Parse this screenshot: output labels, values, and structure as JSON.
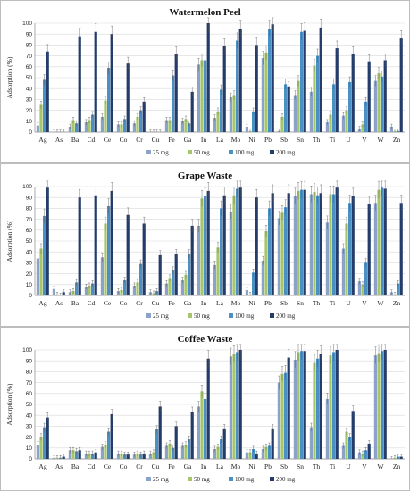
{
  "chart_data": [
    {
      "type": "bar",
      "title": "Watermelon Peel",
      "ylabel": "Adsorption (%)",
      "ylim": [
        0,
        100
      ],
      "yticks": [
        0,
        10,
        20,
        30,
        40,
        50,
        60,
        70,
        80,
        90,
        100
      ],
      "legend_position": "bottom-center",
      "categories": [
        "Ag",
        "As",
        "Ba",
        "Cd",
        "Ce",
        "Co",
        "Cr",
        "Cu",
        "Fe",
        "Ga",
        "In",
        "La",
        "Mo",
        "Ni",
        "Pb",
        "Sb",
        "Sn",
        "Th",
        "Ti",
        "U",
        "V",
        "W",
        "Zn"
      ],
      "series": [
        {
          "name": "25 mg",
          "color": "#8da2c9",
          "values": [
            6,
            0,
            5,
            9,
            14,
            7,
            8,
            0,
            11,
            10,
            62,
            13,
            32,
            5,
            68,
            1,
            34,
            37,
            9,
            15,
            3,
            47,
            5
          ]
        },
        {
          "name": "50 mg",
          "color": "#a7c66a",
          "values": [
            25,
            0,
            11,
            11,
            29,
            7,
            14,
            0,
            11,
            12,
            66,
            19,
            34,
            1,
            73,
            14,
            47,
            61,
            16,
            20,
            7,
            54,
            1
          ]
        },
        {
          "name": "100 mg",
          "color": "#4a90c2",
          "values": [
            48,
            0,
            8,
            16,
            59,
            12,
            20,
            0,
            52,
            8,
            66,
            39,
            84,
            19,
            95,
            44,
            92,
            70,
            44,
            46,
            28,
            51,
            1
          ]
        },
        {
          "name": "200 mg",
          "color": "#243c6a",
          "values": [
            74,
            0,
            88,
            92,
            90,
            63,
            28,
            0,
            72,
            37,
            100,
            79,
            95,
            80,
            99,
            42,
            93,
            96,
            77,
            72,
            65,
            66,
            86
          ]
        }
      ]
    },
    {
      "type": "bar",
      "title": "Grape Waste",
      "ylabel": "Adsorption (%)",
      "ylim": [
        0,
        100
      ],
      "yticks": [
        0,
        10,
        20,
        30,
        40,
        50,
        60,
        70,
        80,
        90,
        100
      ],
      "legend_position": "bottom-center",
      "categories": [
        "Ag",
        "As",
        "Ba",
        "Cd",
        "Ce",
        "Co",
        "Cr",
        "Cu",
        "Fe",
        "Ga",
        "In",
        "La",
        "Mo",
        "Ni",
        "Pb",
        "Sb",
        "Sn",
        "Th",
        "Ti",
        "U",
        "V",
        "W",
        "Zn"
      ],
      "series": [
        {
          "name": "25 mg",
          "color": "#8da2c9",
          "values": [
            34,
            6,
            3,
            8,
            35,
            4,
            9,
            3,
            11,
            14,
            64,
            28,
            77,
            5,
            32,
            71,
            91,
            93,
            67,
            43,
            13,
            85,
            3
          ]
        },
        {
          "name": "50 mg",
          "color": "#a7c66a",
          "values": [
            43,
            1,
            4,
            9,
            66,
            5,
            12,
            2,
            16,
            19,
            89,
            44,
            92,
            1,
            59,
            76,
            96,
            95,
            93,
            66,
            10,
            97,
            1
          ]
        },
        {
          "name": "100 mg",
          "color": "#4a90c2",
          "values": [
            73,
            0,
            12,
            11,
            82,
            14,
            29,
            4,
            23,
            38,
            91,
            80,
            98,
            21,
            80,
            81,
            97,
            92,
            93,
            85,
            30,
            99,
            11
          ]
        },
        {
          "name": "200 mg",
          "color": "#243c6a",
          "values": [
            99,
            3,
            90,
            92,
            96,
            74,
            66,
            37,
            38,
            64,
            96,
            92,
            99,
            90,
            94,
            94,
            97,
            94,
            99,
            91,
            84,
            98,
            85
          ]
        }
      ]
    },
    {
      "type": "bar",
      "title": "Coffee Waste",
      "ylabel": "Adsorption (%)",
      "ylim": [
        0,
        100
      ],
      "yticks": [
        0,
        10,
        20,
        30,
        40,
        50,
        60,
        70,
        80,
        90,
        100
      ],
      "legend_position": "bottom-center",
      "categories": [
        "Ag",
        "As",
        "Ba",
        "Cd",
        "Ce",
        "Co",
        "Cr",
        "Cu",
        "Fe",
        "Ga",
        "In",
        "La",
        "Mo",
        "Ni",
        "Pb",
        "Sb",
        "Sn",
        "Th",
        "Ti",
        "U",
        "V",
        "W",
        "Zn"
      ],
      "series": [
        {
          "name": "25 mg",
          "color": "#8da2c9",
          "values": [
            13,
            1,
            8,
            5,
            11,
            5,
            4,
            5,
            12,
            12,
            48,
            9,
            94,
            6,
            9,
            70,
            91,
            29,
            55,
            12,
            6,
            95,
            0
          ]
        },
        {
          "name": "50 mg",
          "color": "#a7c66a",
          "values": [
            20,
            1,
            8,
            5,
            13,
            5,
            5,
            6,
            14,
            13,
            62,
            11,
            96,
            6,
            11,
            78,
            98,
            88,
            95,
            25,
            5,
            97,
            1
          ]
        },
        {
          "name": "100 mg",
          "color": "#4a90c2",
          "values": [
            29,
            1,
            7,
            5,
            25,
            4,
            4,
            27,
            10,
            18,
            55,
            18,
            98,
            9,
            12,
            79,
            99,
            92,
            98,
            20,
            8,
            99,
            2
          ]
        },
        {
          "name": "200 mg",
          "color": "#243c6a",
          "values": [
            38,
            2,
            8,
            6,
            41,
            4,
            5,
            48,
            30,
            43,
            92,
            28,
            100,
            5,
            28,
            93,
            99,
            96,
            100,
            44,
            14,
            100,
            2
          ]
        }
      ]
    }
  ]
}
